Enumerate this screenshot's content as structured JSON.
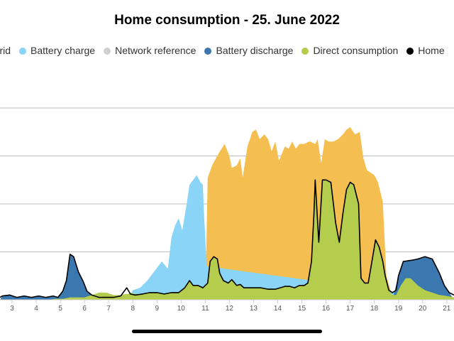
{
  "chart_data": {
    "type": "area",
    "title": "Home consumption - 25. June 2022",
    "legend_position": "top",
    "x_ticks": [
      "3",
      "4",
      "5",
      "6",
      "7",
      "8",
      "9",
      "10",
      "11",
      "12",
      "13",
      "14",
      "15",
      "16",
      "17",
      "18",
      "19",
      "20",
      "21"
    ],
    "xlim": [
      2.5,
      21.3
    ],
    "ylim": [
      0,
      4
    ],
    "grid": true,
    "series": [
      {
        "name": "o grid",
        "color": "#F4BF50",
        "x": [
          2.5,
          11.0,
          11.1,
          11.3,
          11.55,
          11.8,
          12.0,
          12.1,
          12.3,
          12.45,
          12.55,
          12.75,
          12.95,
          13.1,
          13.25,
          13.45,
          13.6,
          13.75,
          13.9,
          14.05,
          14.3,
          14.45,
          14.6,
          14.75,
          14.9,
          15.1,
          15.3,
          15.35,
          15.55,
          15.65,
          15.8,
          15.95,
          16.1,
          16.3,
          16.5,
          16.7,
          16.85,
          17.0,
          17.2,
          17.4,
          17.55,
          17.7,
          17.85,
          18.0,
          18.15,
          18.35,
          18.5,
          18.7,
          21.3
        ],
        "y": [
          0,
          0,
          2.55,
          2.82,
          3.05,
          3.25,
          3.0,
          2.75,
          2.8,
          2.95,
          2.55,
          3.2,
          3.5,
          3.55,
          3.35,
          3.45,
          3.35,
          3.1,
          3.3,
          2.9,
          3.2,
          3.15,
          3.3,
          3.15,
          3.25,
          3.25,
          3.3,
          3.3,
          3.25,
          3.35,
          2.85,
          3.35,
          3.3,
          3.3,
          3.35,
          3.45,
          3.55,
          3.6,
          3.45,
          3.5,
          2.95,
          2.7,
          2.65,
          2.6,
          2.45,
          2.05,
          0.5,
          0.15,
          0
        ]
      },
      {
        "name": "Battery charge",
        "color": "#8AD4F7",
        "x": [
          2.5,
          7.8,
          8.0,
          8.3,
          8.6,
          8.9,
          9.2,
          9.45,
          9.6,
          9.75,
          9.9,
          10.05,
          10.2,
          10.35,
          10.5,
          10.65,
          10.8,
          10.9,
          10.95,
          11.0,
          11.05,
          21.3
        ],
        "y": [
          0,
          0,
          0.2,
          0.25,
          0.4,
          0.6,
          0.8,
          0.65,
          1.3,
          1.55,
          1.7,
          1.45,
          1.9,
          2.4,
          2.5,
          2.6,
          2.45,
          2.4,
          1.75,
          1.3,
          0.7,
          0
        ]
      },
      {
        "name": "Network reference",
        "color": "#D0D0D0",
        "x": [
          2.5,
          21.3
        ],
        "y": [
          0,
          0
        ]
      },
      {
        "name": "Battery discharge",
        "color": "#3B78B0",
        "x": [
          2.5,
          2.6,
          2.9,
          3.2,
          3.5,
          3.8,
          4.1,
          4.4,
          4.7,
          4.9,
          5.1,
          5.25,
          5.4,
          5.55,
          5.75,
          5.95,
          6.1,
          6.3,
          6.6,
          6.9,
          7.2,
          7.5,
          7.7,
          8.0,
          18.8,
          19.0,
          19.2,
          19.5,
          19.8,
          20.1,
          20.4,
          20.7,
          20.9,
          21.1,
          21.3
        ],
        "y": [
          0,
          0.08,
          0.1,
          0.05,
          0.08,
          0.05,
          0.08,
          0.05,
          0.08,
          0.05,
          0.18,
          0.4,
          0.95,
          0.9,
          0.58,
          0.38,
          0.18,
          0.1,
          0.05,
          0.05,
          0.05,
          0.05,
          0.05,
          0.05,
          0.1,
          0.5,
          0.8,
          0.82,
          0.85,
          0.9,
          0.85,
          0.55,
          0.3,
          0.15,
          0
        ]
      },
      {
        "name": "Direct consumption",
        "color": "#B5CD4C",
        "x": [
          2.5,
          4.5,
          4.8,
          5.1,
          5.4,
          5.7,
          6.0,
          6.3,
          6.6,
          6.9,
          7.2,
          7.5,
          7.7,
          7.8,
          7.9,
          8.1,
          8.4,
          8.7,
          9.0,
          9.3,
          9.6,
          9.9,
          10.15,
          10.35,
          10.5,
          10.7,
          10.9,
          11.1,
          11.2,
          11.35,
          11.5,
          11.6,
          11.75,
          11.95,
          12.1,
          12.3,
          12.45,
          12.6,
          12.8,
          13.0,
          13.3,
          13.6,
          13.9,
          14.1,
          14.3,
          14.5,
          14.7,
          14.9,
          15.1,
          15.25,
          15.4,
          15.5,
          15.55,
          15.7,
          15.85,
          16.0,
          16.2,
          16.4,
          16.55,
          16.7,
          16.85,
          17.0,
          17.15,
          17.35,
          17.45,
          17.6,
          17.75,
          17.9,
          18.05,
          18.2,
          18.35,
          18.45,
          18.6,
          18.75,
          18.9,
          19.1,
          19.3,
          19.5,
          19.8,
          20.1,
          20.4,
          20.7,
          21.0,
          21.3
        ],
        "y": [
          0,
          0,
          0.02,
          0.02,
          0.05,
          0.05,
          0.05,
          0.1,
          0.15,
          0.15,
          0.1,
          0.1,
          0.12,
          0.12,
          0.15,
          0.12,
          0.12,
          0.15,
          0.15,
          0.12,
          0.15,
          0.15,
          0.25,
          0.4,
          0.3,
          0.3,
          0.25,
          0.35,
          0.8,
          0.9,
          0.85,
          0.55,
          0.4,
          0.35,
          0.42,
          0.3,
          0.32,
          0.25,
          0.25,
          0.25,
          0.25,
          0.22,
          0.22,
          0.25,
          0.28,
          0.28,
          0.25,
          0.3,
          0.3,
          0.35,
          0.8,
          1.8,
          2.5,
          1.2,
          2.5,
          2.5,
          2.45,
          1.6,
          1.2,
          1.8,
          2.3,
          2.45,
          2.4,
          2.0,
          0.45,
          0.35,
          0.35,
          0.8,
          1.25,
          1.1,
          0.8,
          0.5,
          0.2,
          0.1,
          0.1,
          0.3,
          0.45,
          0.45,
          0.3,
          0.2,
          0.15,
          0.1,
          0.08,
          0.05
        ]
      },
      {
        "name": "Home",
        "color": "#000000",
        "x": [
          2.5,
          2.6,
          2.9,
          3.2,
          3.5,
          3.8,
          4.1,
          4.4,
          4.7,
          4.9,
          5.1,
          5.25,
          5.4,
          5.55,
          5.75,
          5.95,
          6.1,
          6.3,
          6.6,
          6.9,
          7.2,
          7.5,
          7.6,
          7.75,
          7.9,
          8.1,
          8.4,
          8.7,
          9.0,
          9.3,
          9.6,
          9.9,
          10.15,
          10.35,
          10.5,
          10.7,
          10.9,
          11.1,
          11.2,
          11.35,
          11.5,
          11.6,
          11.75,
          11.95,
          12.1,
          12.3,
          12.45,
          12.6,
          12.8,
          13.0,
          13.3,
          13.6,
          13.9,
          14.1,
          14.3,
          14.5,
          14.7,
          14.9,
          15.1,
          15.25,
          15.4,
          15.5,
          15.55,
          15.7,
          15.85,
          16.0,
          16.2,
          16.4,
          16.55,
          16.7,
          16.85,
          17.0,
          17.15,
          17.35,
          17.45,
          17.6,
          17.75,
          17.9,
          18.05,
          18.2,
          18.35,
          18.45,
          18.6,
          18.75,
          18.9,
          19.0,
          19.2,
          19.5,
          19.8,
          20.1,
          20.4,
          20.7,
          20.9,
          21.1,
          21.3
        ],
        "y": [
          0.05,
          0.08,
          0.1,
          0.05,
          0.08,
          0.05,
          0.08,
          0.05,
          0.08,
          0.05,
          0.18,
          0.4,
          0.95,
          0.9,
          0.58,
          0.38,
          0.18,
          0.1,
          0.05,
          0.05,
          0.05,
          0.08,
          0.15,
          0.25,
          0.12,
          0.1,
          0.12,
          0.15,
          0.15,
          0.12,
          0.15,
          0.15,
          0.25,
          0.4,
          0.3,
          0.3,
          0.25,
          0.35,
          0.8,
          0.9,
          0.85,
          0.55,
          0.4,
          0.35,
          0.42,
          0.3,
          0.32,
          0.25,
          0.25,
          0.25,
          0.25,
          0.22,
          0.22,
          0.25,
          0.28,
          0.28,
          0.25,
          0.3,
          0.3,
          0.35,
          0.8,
          1.8,
          2.5,
          1.2,
          2.5,
          2.5,
          2.45,
          1.6,
          1.2,
          1.8,
          2.3,
          2.45,
          2.4,
          2.0,
          0.45,
          0.35,
          0.35,
          0.8,
          1.25,
          1.1,
          0.8,
          0.5,
          0.2,
          0.15,
          0.2,
          0.5,
          0.8,
          0.82,
          0.85,
          0.9,
          0.85,
          0.55,
          0.3,
          0.15,
          0.1
        ]
      }
    ]
  }
}
